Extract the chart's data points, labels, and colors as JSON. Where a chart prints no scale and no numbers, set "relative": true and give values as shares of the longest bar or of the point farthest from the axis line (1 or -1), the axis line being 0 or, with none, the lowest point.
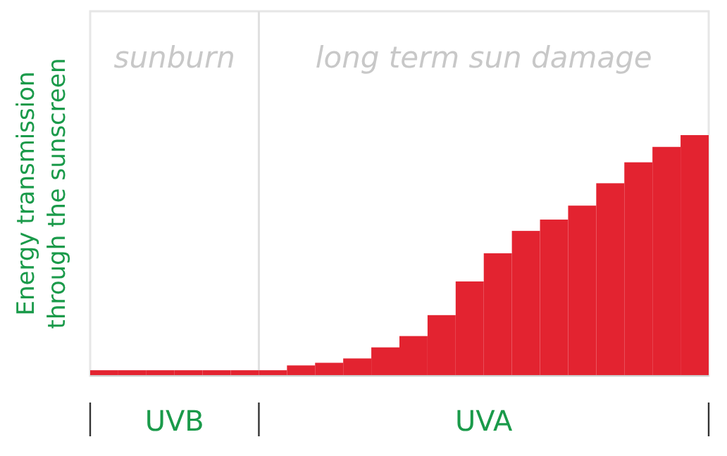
{
  "chart_data": {
    "type": "bar",
    "relative": true,
    "ylabel": "Energy transmission through the sunscreen",
    "color": "#e32330",
    "categories": [
      null,
      null,
      null,
      null,
      null,
      null,
      null,
      null,
      null,
      null,
      null,
      null,
      null,
      null,
      null,
      null,
      null,
      null,
      null,
      null,
      null,
      null
    ],
    "values": [
      0.023,
      0.023,
      0.023,
      0.023,
      0.023,
      0.023,
      0.023,
      0.043,
      0.054,
      0.072,
      0.118,
      0.165,
      0.252,
      0.392,
      0.509,
      0.602,
      0.649,
      0.707,
      0.8,
      0.887,
      0.951,
      1
    ],
    "annotations": [
      "sunburn",
      "long term sun damage",
      "UVB",
      "UVA"
    ]
  }
}
